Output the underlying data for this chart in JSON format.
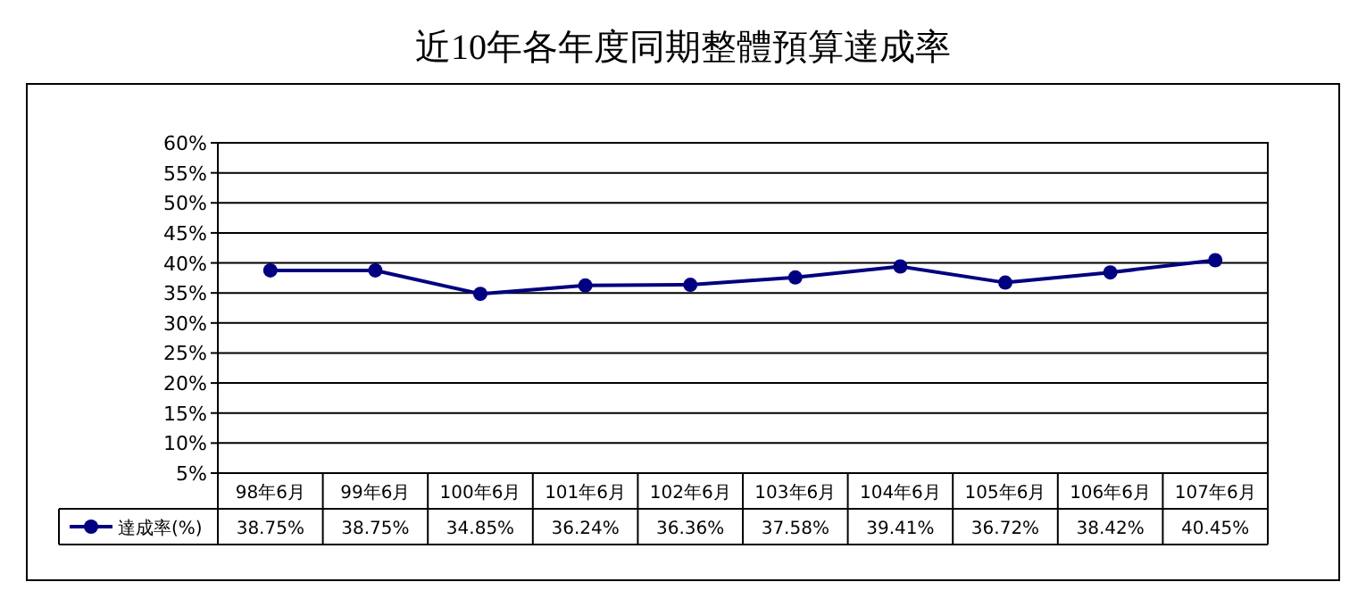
{
  "chart_data": {
    "type": "line",
    "title": "近10年各年度同期整體預算達成率",
    "categories": [
      "98年6月",
      "99年6月",
      "100年6月",
      "101年6月",
      "102年6月",
      "103年6月",
      "104年6月",
      "105年6月",
      "106年6月",
      "107年6月"
    ],
    "series": [
      {
        "name": "達成率(%)",
        "color": "#000080",
        "values": [
          38.75,
          38.75,
          34.85,
          36.24,
          36.36,
          37.58,
          39.41,
          36.72,
          38.42,
          40.45
        ],
        "value_labels": [
          "38.75%",
          "38.75%",
          "34.85%",
          "36.24%",
          "36.36%",
          "37.58%",
          "39.41%",
          "36.72%",
          "38.42%",
          "40.45%"
        ]
      }
    ],
    "ylim": [
      5,
      60
    ],
    "yticks": [
      {
        "value": 5,
        "label": "5%"
      },
      {
        "value": 10,
        "label": "10%"
      },
      {
        "value": 15,
        "label": "15%"
      },
      {
        "value": 20,
        "label": "20%"
      },
      {
        "value": 25,
        "label": "25%"
      },
      {
        "value": 30,
        "label": "30%"
      },
      {
        "value": 35,
        "label": "35%"
      },
      {
        "value": 40,
        "label": "40%"
      },
      {
        "value": 45,
        "label": "45%"
      },
      {
        "value": 50,
        "label": "50%"
      },
      {
        "value": 55,
        "label": "55%"
      },
      {
        "value": 60,
        "label": "60%"
      }
    ],
    "grid": "y",
    "legend": "bottom",
    "marker": "circle",
    "line_style": "solid"
  }
}
